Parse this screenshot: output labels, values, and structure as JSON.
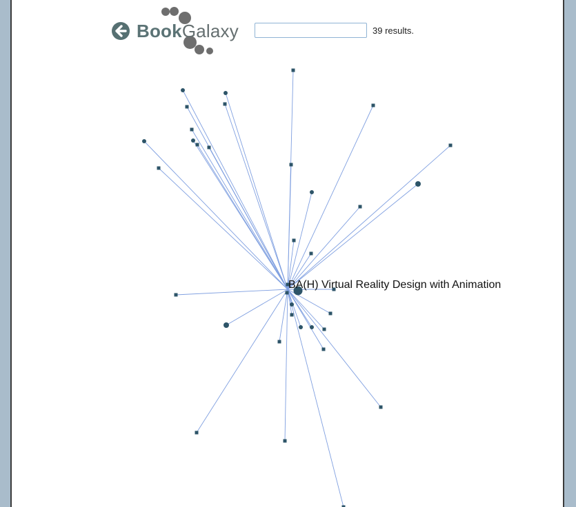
{
  "app": {
    "logo_word_1": "Book",
    "logo_word_2": "Galaxy",
    "back_icon": "back-arrow-icon"
  },
  "search": {
    "value": "",
    "placeholder": "",
    "results_text": "39 results."
  },
  "graph": {
    "center_label": "BA(H) Virtual Reality Design with Animation",
    "colors": {
      "edge": "#7f9fe0",
      "node": "#2d5468"
    }
  }
}
